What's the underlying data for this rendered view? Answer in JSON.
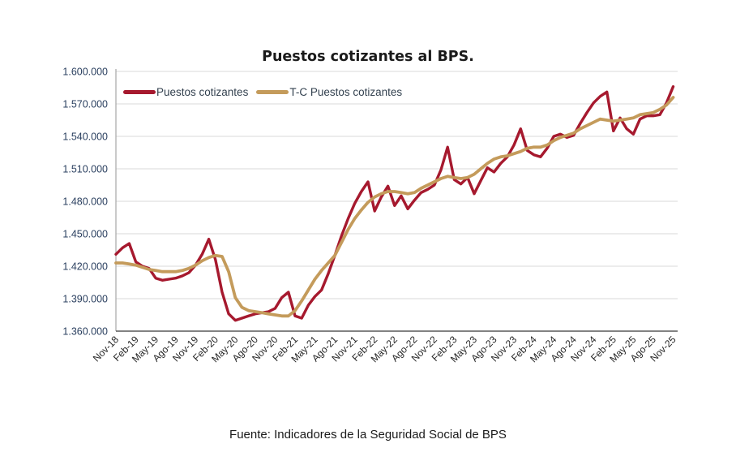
{
  "page": {
    "title": "Puestos cotizantes al BPS.",
    "source_note": "Fuente: Indicadores de la Seguridad Social de BPS"
  },
  "legend": {
    "items": [
      {
        "label": "Puestos cotizantes",
        "color": "#A6192E"
      },
      {
        "label": "T-C Puestos cotizantes",
        "color": "#C49B5B"
      }
    ]
  },
  "chart_data": {
    "type": "line",
    "title": "Puestos cotizantes al BPS.",
    "grid": true,
    "legend_position": "top-left-inside",
    "ylim": [
      1360000,
      1600000
    ],
    "y_ticks": [
      {
        "value": 1360000,
        "label": "1.360.000"
      },
      {
        "value": 1390000,
        "label": "1.390.000"
      },
      {
        "value": 1420000,
        "label": "1.420.000"
      },
      {
        "value": 1450000,
        "label": "1.450.000"
      },
      {
        "value": 1480000,
        "label": "1.480.000"
      },
      {
        "value": 1510000,
        "label": "1.510.000"
      },
      {
        "value": 1540000,
        "label": "1.540.000"
      },
      {
        "value": 1570000,
        "label": "1.570.000"
      },
      {
        "value": 1600000,
        "label": "1.600.000"
      }
    ],
    "x_tick_labels": [
      "Nov-18",
      "Feb-19",
      "May-19",
      "Ago-19",
      "Nov-19",
      "Feb-20",
      "May-20",
      "Ago-20",
      "Nov-20",
      "Feb-21",
      "May-21",
      "Ago-21",
      "Nov-21",
      "Feb-22",
      "May-22",
      "Ago-22",
      "Nov-22",
      "Feb-23",
      "May-23",
      "Ago-23",
      "Nov-23",
      "Feb-24",
      "May-24",
      "Ago-24",
      "Nov-24",
      "Feb-25",
      "May-25",
      "Ago-25",
      "Nov-25"
    ],
    "x_tick_every": 3,
    "x": [
      "Nov-18",
      "Dic-18",
      "Ene-19",
      "Feb-19",
      "Mar-19",
      "Abr-19",
      "May-19",
      "Jun-19",
      "Jul-19",
      "Ago-19",
      "Sep-19",
      "Oct-19",
      "Nov-19",
      "Dic-19",
      "Ene-20",
      "Feb-20",
      "Mar-20",
      "Abr-20",
      "May-20",
      "Jun-20",
      "Jul-20",
      "Ago-20",
      "Sep-20",
      "Oct-20",
      "Nov-20",
      "Dic-20",
      "Ene-21",
      "Feb-21",
      "Mar-21",
      "Abr-21",
      "May-21",
      "Jun-21",
      "Jul-21",
      "Ago-21",
      "Sep-21",
      "Oct-21",
      "Nov-21",
      "Dic-21",
      "Ene-22",
      "Feb-22",
      "Mar-22",
      "Abr-22",
      "May-22",
      "Jun-22",
      "Jul-22",
      "Ago-22",
      "Sep-22",
      "Oct-22",
      "Nov-22",
      "Dic-22",
      "Ene-23",
      "Feb-23",
      "Mar-23",
      "Abr-23",
      "May-23",
      "Jun-23",
      "Jul-23",
      "Ago-23",
      "Sep-23",
      "Oct-23",
      "Nov-23",
      "Dic-23",
      "Ene-24",
      "Feb-24",
      "Mar-24",
      "Abr-24",
      "May-24",
      "Jun-24",
      "Jul-24",
      "Ago-24",
      "Sep-24",
      "Oct-24",
      "Nov-24",
      "Dic-24",
      "Ene-25",
      "Feb-25",
      "Mar-25",
      "Abr-25",
      "May-25",
      "Jun-25",
      "Jul-25",
      "Ago-25",
      "Sep-25",
      "Oct-25",
      "Nov-25"
    ],
    "series": [
      {
        "name": "Puestos cotizantes",
        "color": "#A6192E",
        "values": [
          1431000,
          1437000,
          1441000,
          1424000,
          1420000,
          1418000,
          1409000,
          1407000,
          1408000,
          1409000,
          1411000,
          1414000,
          1421000,
          1431000,
          1445000,
          1426000,
          1396000,
          1376000,
          1370000,
          1372000,
          1374000,
          1376000,
          1377000,
          1378000,
          1381000,
          1391000,
          1396000,
          1374000,
          1372000,
          1384000,
          1392000,
          1398000,
          1413000,
          1430000,
          1448000,
          1464000,
          1478000,
          1489000,
          1498000,
          1471000,
          1484000,
          1494000,
          1476000,
          1485000,
          1473000,
          1481000,
          1488000,
          1491000,
          1495000,
          1509000,
          1530000,
          1500000,
          1496000,
          1502000,
          1487000,
          1499000,
          1511000,
          1507000,
          1515000,
          1521000,
          1532000,
          1547000,
          1527000,
          1523000,
          1521000,
          1529000,
          1540000,
          1542000,
          1539000,
          1541000,
          1552000,
          1562000,
          1571000,
          1577000,
          1581000,
          1545000,
          1557000,
          1547000,
          1542000,
          1556000,
          1559000,
          1559000,
          1560000,
          1571000,
          1586000
        ]
      },
      {
        "name": "T-C Puestos cotizantes",
        "color": "#C49B5B",
        "values": [
          1423000,
          1423000,
          1422000,
          1421000,
          1419000,
          1417000,
          1416000,
          1415000,
          1415000,
          1415000,
          1416000,
          1418000,
          1421000,
          1425000,
          1428000,
          1430000,
          1429000,
          1415000,
          1391000,
          1382000,
          1379000,
          1378000,
          1377000,
          1376000,
          1375000,
          1374000,
          1374000,
          1379000,
          1388000,
          1398000,
          1408000,
          1416000,
          1423000,
          1430000,
          1442000,
          1454000,
          1464000,
          1472000,
          1479000,
          1484000,
          1487000,
          1489000,
          1489000,
          1488000,
          1487000,
          1488000,
          1492000,
          1495000,
          1498000,
          1501000,
          1503000,
          1502000,
          1501000,
          1502000,
          1505000,
          1510000,
          1515000,
          1519000,
          1521000,
          1522000,
          1524000,
          1526000,
          1529000,
          1530000,
          1530000,
          1532000,
          1536000,
          1539000,
          1541000,
          1543000,
          1547000,
          1550000,
          1553000,
          1556000,
          1555000,
          1554000,
          1555000,
          1556000,
          1557000,
          1560000,
          1561000,
          1562000,
          1565000,
          1569000,
          1576000
        ]
      }
    ],
    "colors": {
      "gridline": "#D9D9D9",
      "axis_left": "#A6A6A6",
      "axis_bottom": "#595959",
      "y_label": "#2A3F5F",
      "x_label": "#262626"
    }
  }
}
